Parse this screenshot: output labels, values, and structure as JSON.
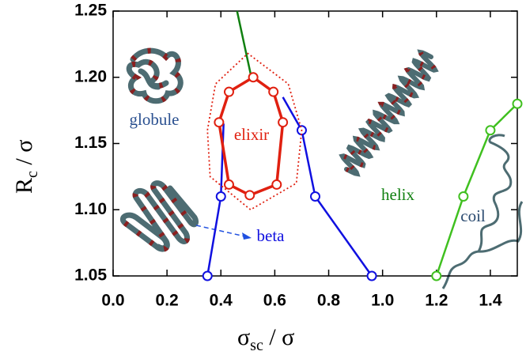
{
  "chart_data": {
    "type": "line",
    "xlabel": {
      "main": "σ",
      "sub": "sc",
      "rest": " / σ"
    },
    "ylabel": {
      "main": "R",
      "sub": "c",
      "rest": " / σ"
    },
    "xlim": [
      0,
      1.5
    ],
    "ylim": [
      1.05,
      1.25
    ],
    "xticks": [
      {
        "value": 0,
        "label": "0.0"
      },
      0.2,
      0.4,
      0.6,
      0.8,
      {
        "value": 1,
        "label": "1.0"
      },
      1.2,
      1.4
    ],
    "yticks": [
      1.05,
      {
        "value": 1.1,
        "label": "1.10"
      },
      1.15,
      {
        "value": 1.2,
        "label": "1.20"
      },
      1.25
    ],
    "series": [
      {
        "color": "#1010e0",
        "x": [
          0.35,
          0.4,
          0.41
        ],
        "values": [
          1.05,
          1.11,
          1.165
        ],
        "markers": [
          true,
          true,
          false
        ]
      },
      {
        "color": "#1010e0",
        "x": [
          0.63,
          0.7,
          0.75,
          0.96
        ],
        "values": [
          1.185,
          1.16,
          1.11,
          1.05
        ],
        "markers": [
          false,
          true,
          true,
          true
        ]
      },
      {
        "color": "#108010",
        "x": [
          0.46,
          0.513
        ],
        "values": [
          1.25,
          1.2
        ],
        "markers": [
          false,
          false
        ]
      },
      {
        "color": "#40c020",
        "x": [
          1.2,
          1.3,
          1.4,
          1.5
        ],
        "values": [
          1.05,
          1.11,
          1.16,
          1.18
        ],
        "markers": [
          true,
          true,
          true,
          true
        ]
      },
      {
        "color": "#e02010",
        "x": [
          0.52,
          0.595,
          0.63,
          0.607,
          0.507,
          0.43,
          0.393,
          0.43
        ],
        "values": [
          1.2,
          1.189,
          1.166,
          1.119,
          1.111,
          1.119,
          1.166,
          1.189
        ],
        "markers": [
          true,
          true,
          true,
          true,
          true,
          true,
          true,
          true
        ],
        "closed": true,
        "width": 3.5
      },
      {
        "color": "#e02010",
        "x": [
          0.35,
          0.38,
          0.5,
          0.65,
          0.7,
          0.68,
          0.51,
          0.36
        ],
        "values": [
          1.16,
          1.195,
          1.218,
          1.195,
          1.16,
          1.12,
          1.1,
          1.125
        ],
        "markers": [
          false,
          false,
          false,
          false,
          false,
          false,
          false,
          false
        ],
        "closed": true,
        "dotted": true,
        "width": 1.8
      }
    ],
    "annotations": [
      "globule",
      "elixir",
      "helix",
      "beta",
      "coil"
    ],
    "annotation_colors": [
      "#2a5090",
      "#e02010",
      "#108010",
      "#1010e0",
      "#2a4a70"
    ]
  }
}
